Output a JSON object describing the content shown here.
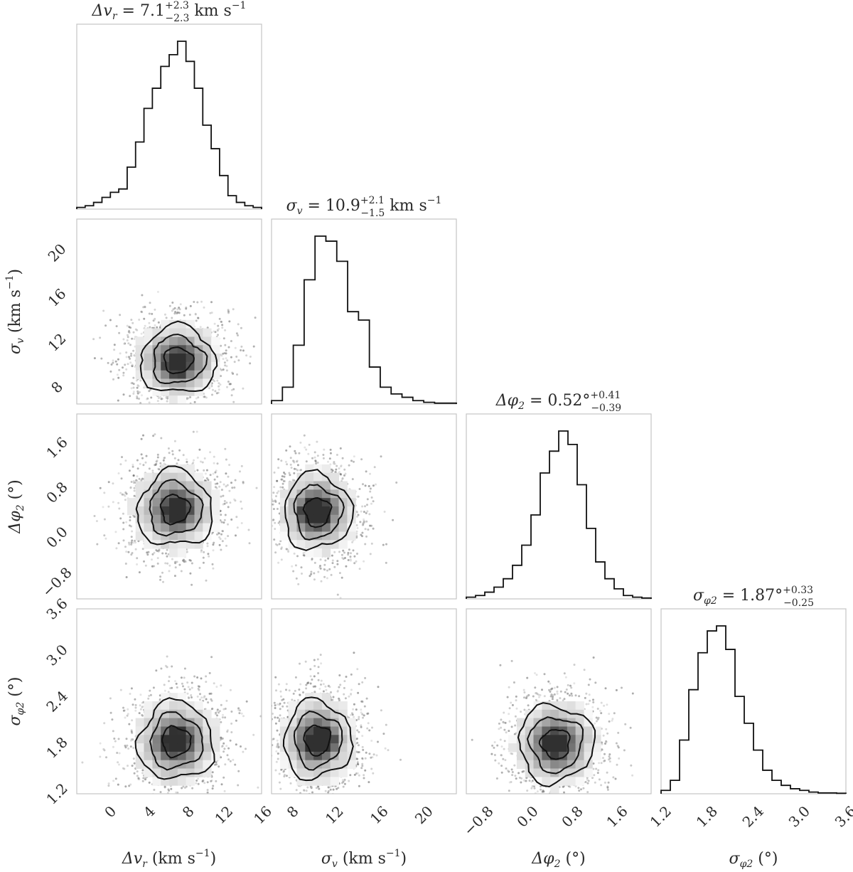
{
  "chart_data": {
    "type": "corner",
    "parameters": [
      {
        "key": "dvr",
        "axis_label": "Δv",
        "axis_label_sub": "r",
        "axis_label_unit": " (km s",
        "axis_label_unit_sup": "−1",
        "axis_label_close": ")",
        "range": [
          -3,
          16
        ],
        "ticks": [
          0,
          4,
          8,
          12,
          16
        ],
        "tick_labels": [
          "0",
          "4",
          "8",
          "12",
          "16"
        ],
        "title_main": "Δv",
        "title_sub": "r",
        "title_eq": " = 7.1",
        "title_plus": "+2.3",
        "title_minus": "−2.3",
        "title_unit": " km s",
        "title_unit_sup": "−1",
        "median": 7.1,
        "err_plus": 2.3,
        "err_minus": 2.3,
        "sigma": 2.3,
        "hist_values": [
          0.01,
          0.02,
          0.04,
          0.07,
          0.1,
          0.12,
          0.25,
          0.4,
          0.6,
          0.72,
          0.85,
          0.92,
          1.0,
          0.88,
          0.72,
          0.5,
          0.36,
          0.2,
          0.08,
          0.04,
          0.02,
          0.01
        ]
      },
      {
        "key": "sv",
        "axis_label": "σ",
        "axis_label_sub": "v",
        "axis_label_unit": " (km s",
        "axis_label_unit_sup": "−1",
        "axis_label_close": ")",
        "range": [
          6.5,
          23
        ],
        "ticks": [
          8,
          12,
          16,
          20
        ],
        "tick_labels": [
          "8",
          "12",
          "16",
          "20"
        ],
        "title_main": "σ",
        "title_sub": "v",
        "title_eq": " = 10.9",
        "title_plus": "+2.1",
        "title_minus": "−1.5",
        "title_unit": " km s",
        "title_unit_sup": "−1",
        "median": 10.9,
        "err_plus": 2.1,
        "err_minus": 1.5,
        "sigma": 1.8,
        "hist_values": [
          0.02,
          0.1,
          0.35,
          0.74,
          1.0,
          0.97,
          0.85,
          0.55,
          0.5,
          0.22,
          0.1,
          0.06,
          0.04,
          0.02,
          0.01,
          0.005,
          0.005
        ]
      },
      {
        "key": "dphi2",
        "axis_label": "Δφ",
        "axis_label_sub": "2",
        "axis_label_unit": " (°)",
        "axis_label_unit_sup": "",
        "axis_label_close": "",
        "range": [
          -1.1,
          2.2
        ],
        "ticks": [
          -0.8,
          0.0,
          0.8,
          1.6
        ],
        "tick_labels": [
          "−0.8",
          "0.0",
          "0.8",
          "1.6"
        ],
        "title_main": "Δφ",
        "title_sub": "2",
        "title_eq": " = 0.52°",
        "title_plus": "+0.41",
        "title_minus": "−0.39",
        "title_unit": "",
        "title_unit_sup": "",
        "median": 0.52,
        "err_plus": 0.41,
        "err_minus": 0.39,
        "sigma": 0.4,
        "hist_values": [
          0.01,
          0.02,
          0.04,
          0.07,
          0.12,
          0.2,
          0.32,
          0.5,
          0.75,
          0.88,
          1.0,
          0.92,
          0.68,
          0.42,
          0.22,
          0.12,
          0.06,
          0.02,
          0.01,
          0.005
        ]
      },
      {
        "key": "sphi2",
        "axis_label": "σ",
        "axis_label_sub": "φ2",
        "axis_label_unit": " (°)",
        "axis_label_unit_sup": "",
        "axis_label_close": "",
        "range": [
          1.2,
          3.6
        ],
        "ticks": [
          1.2,
          1.8,
          2.4,
          3.0,
          3.6
        ],
        "tick_labels": [
          "1.2",
          "1.8",
          "2.4",
          "3.0",
          "3.6"
        ],
        "title_main": "σ",
        "title_sub": "φ2",
        "title_eq": " = 1.87°",
        "title_plus": "+0.33",
        "title_minus": "−0.25",
        "title_unit": "",
        "title_unit_sup": "",
        "median": 1.87,
        "err_plus": 0.33,
        "err_minus": 0.25,
        "sigma": 0.3,
        "hist_values": [
          0.02,
          0.08,
          0.32,
          0.62,
          0.84,
          0.97,
          1.0,
          0.86,
          0.58,
          0.42,
          0.26,
          0.14,
          0.08,
          0.05,
          0.03,
          0.02,
          0.01,
          0.005,
          0.005,
          0.003
        ]
      }
    ],
    "pairs": [
      {
        "x": 0,
        "y": 1,
        "center": [
          7.4,
          10.4
        ],
        "hot": [
          [
            7.3,
            10.0
          ]
        ]
      },
      {
        "x": 0,
        "y": 2,
        "center": [
          7.1,
          0.5
        ],
        "hot": [
          [
            7.5,
            0.5
          ]
        ]
      },
      {
        "x": 1,
        "y": 2,
        "center": [
          10.6,
          0.45
        ],
        "hot": [
          [
            10.0,
            0.45
          ],
          [
            10.6,
            0.45
          ]
        ]
      },
      {
        "x": 0,
        "y": 3,
        "center": [
          7.2,
          1.88
        ],
        "hot": [
          [
            7.2,
            1.88
          ]
        ]
      },
      {
        "x": 1,
        "y": 3,
        "center": [
          10.6,
          1.9
        ],
        "hot": [
          [
            10.5,
            1.85
          ],
          [
            11.2,
            1.9
          ]
        ]
      },
      {
        "x": 2,
        "y": 3,
        "center": [
          0.5,
          1.85
        ],
        "hot": [
          [
            0.5,
            1.85
          ]
        ]
      }
    ]
  }
}
